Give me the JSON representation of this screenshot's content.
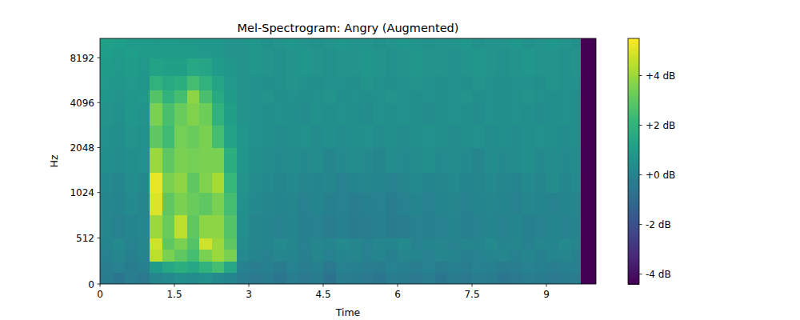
{
  "chart_data": {
    "type": "heatmap",
    "title": "Mel-Spectrogram: Angry (Augmented)",
    "x_label": "Time",
    "y_label": "Hz",
    "log": "y",
    "xlim": [
      0,
      10
    ],
    "ylim": [
      0,
      11025
    ],
    "xticks": [
      0,
      1.5,
      3,
      4.5,
      6,
      7.5,
      9
    ],
    "yticks": [
      0,
      512,
      1024,
      2048,
      4096,
      8192
    ],
    "x_edges": [
      0,
      0.25,
      0.5,
      0.75,
      1,
      1.25,
      1.5,
      1.75,
      2,
      2.25,
      2.5,
      2.75,
      3,
      3.25,
      3.5,
      3.75,
      4,
      4.25,
      4.5,
      4.75,
      5,
      5.25,
      5.5,
      5.75,
      6,
      6.25,
      6.5,
      6.75,
      7,
      7.25,
      7.5,
      7.75,
      8,
      8.25,
      8.5,
      8.75,
      9,
      9.25,
      9.5,
      9.7,
      10
    ],
    "y_edges": [
      0,
      128,
      256,
      384,
      512,
      768,
      1024,
      1400,
      2048,
      2900,
      4096,
      5000,
      6200,
      8192,
      9500,
      11025
    ],
    "cells": [
      [
        -0.3,
        -0.5,
        -0.2,
        -0.4,
        0.2,
        0.3,
        0.5,
        0.4,
        0.6,
        0.3,
        0.1,
        -0.2,
        -0.4,
        -0.3,
        -0.5,
        -0.2,
        -0.4,
        -0.3,
        -0.6,
        -0.2,
        -0.3,
        -0.4,
        -0.5,
        -0.2,
        -0.3,
        -0.4,
        -0.2,
        -0.5,
        -0.3,
        -0.4,
        -0.2,
        -0.3,
        -0.5,
        -0.4,
        -0.2,
        -0.3,
        -0.4,
        -0.3,
        -0.2,
        -4.4
      ],
      [
        -0.2,
        0.0,
        -0.3,
        -0.1,
        1.0,
        1.5,
        1.8,
        1.5,
        2.0,
        2.5,
        1.5,
        0.0,
        -0.2,
        -0.1,
        -0.3,
        0.0,
        -0.2,
        -0.1,
        -0.4,
        0.0,
        -0.1,
        -0.2,
        -0.3,
        0.0,
        -0.1,
        -0.2,
        0.0,
        -0.3,
        -0.1,
        -0.2,
        0.0,
        -0.1,
        -0.3,
        -0.2,
        0.0,
        -0.1,
        -0.2,
        -0.1,
        0.0,
        -4.4
      ],
      [
        0.0,
        0.2,
        -0.1,
        0.1,
        4.5,
        3.5,
        3.0,
        2.5,
        3.5,
        4.0,
        3.5,
        0.3,
        0.1,
        0.0,
        0.2,
        0.1,
        -0.1,
        0.2,
        0.0,
        0.1,
        0.2,
        0.0,
        0.1,
        -0.1,
        0.2,
        0.1,
        0.0,
        0.2,
        0.1,
        -0.1,
        0.0,
        0.1,
        0.2,
        0.0,
        0.1,
        -0.1,
        0.1,
        0.2,
        0.0,
        -4.4
      ],
      [
        0.1,
        0.3,
        0.0,
        0.2,
        4.8,
        3.0,
        3.5,
        2.8,
        4.8,
        4.0,
        3.0,
        0.4,
        0.2,
        0.1,
        0.3,
        0.2,
        0.0,
        0.2,
        0.1,
        0.3,
        0.2,
        0.0,
        0.2,
        0.1,
        0.3,
        0.0,
        0.1,
        0.2,
        0.0,
        0.2,
        0.1,
        0.3,
        0.1,
        0.2,
        0.0,
        0.2,
        0.1,
        0.3,
        0.2,
        -4.4
      ],
      [
        0.2,
        0.0,
        0.1,
        0.2,
        4.0,
        3.2,
        4.5,
        3.0,
        3.8,
        3.8,
        2.8,
        0.5,
        0.2,
        0.1,
        0.0,
        0.1,
        -0.1,
        0.0,
        -0.2,
        -0.1,
        -0.3,
        -0.2,
        -0.1,
        -0.3,
        -0.2,
        0.0,
        -0.1,
        0.0,
        0.1,
        -0.1,
        0.0,
        0.1,
        0.0,
        0.1,
        -0.1,
        0.0,
        0.1,
        0.0,
        0.1,
        -4.4
      ],
      [
        0.2,
        0.1,
        0.3,
        0.2,
        5.0,
        3.0,
        3.5,
        3.2,
        3.0,
        3.5,
        2.5,
        0.6,
        0.3,
        0.2,
        0.1,
        0.2,
        0.0,
        0.1,
        -0.1,
        0.0,
        -0.2,
        -0.1,
        0.0,
        -0.2,
        0.0,
        0.1,
        0.0,
        0.1,
        0.2,
        0.0,
        0.1,
        0.2,
        0.1,
        0.0,
        0.2,
        0.1,
        0.0,
        0.1,
        0.2,
        -4.4
      ],
      [
        0.3,
        0.2,
        0.4,
        0.3,
        5.2,
        3.5,
        3.8,
        3.0,
        3.6,
        4.2,
        2.2,
        0.7,
        0.4,
        0.3,
        0.2,
        0.3,
        0.2,
        0.1,
        0.2,
        0.0,
        0.1,
        0.2,
        0.1,
        0.0,
        0.2,
        0.3,
        0.1,
        0.2,
        0.3,
        0.1,
        0.2,
        0.3,
        0.2,
        0.1,
        0.3,
        0.2,
        0.4,
        0.2,
        0.3,
        -4.4
      ],
      [
        0.5,
        0.4,
        0.5,
        0.6,
        4.0,
        3.0,
        3.5,
        3.4,
        3.5,
        3.5,
        1.8,
        0.8,
        0.5,
        0.4,
        0.3,
        0.4,
        0.3,
        0.4,
        0.2,
        0.3,
        0.4,
        0.3,
        0.2,
        0.4,
        0.3,
        0.4,
        0.5,
        0.3,
        0.4,
        0.3,
        0.2,
        0.4,
        0.3,
        0.4,
        0.5,
        0.3,
        0.4,
        0.3,
        0.4,
        -4.4
      ],
      [
        0.6,
        0.5,
        0.7,
        0.6,
        3.0,
        2.4,
        3.4,
        3.2,
        3.5,
        2.5,
        1.3,
        0.8,
        0.6,
        0.5,
        0.4,
        0.5,
        0.6,
        0.4,
        0.5,
        0.4,
        0.5,
        0.6,
        0.4,
        0.5,
        0.4,
        0.5,
        0.6,
        0.5,
        0.4,
        0.5,
        0.6,
        0.4,
        0.5,
        0.4,
        0.5,
        0.6,
        0.5,
        0.4,
        0.5,
        -4.4
      ],
      [
        0.7,
        0.6,
        0.8,
        0.7,
        3.5,
        2.6,
        3.2,
        3.6,
        3.3,
        2.0,
        1.2,
        0.7,
        0.6,
        0.5,
        0.6,
        0.5,
        0.4,
        0.6,
        0.5,
        0.6,
        0.5,
        0.4,
        0.6,
        0.5,
        0.6,
        0.5,
        0.4,
        0.5,
        0.6,
        0.5,
        0.4,
        0.6,
        0.5,
        0.6,
        0.5,
        0.4,
        0.5,
        0.6,
        0.5,
        -4.4
      ],
      [
        0.8,
        0.7,
        0.8,
        0.9,
        2.8,
        2.0,
        2.5,
        3.8,
        2.6,
        1.6,
        1.0,
        0.7,
        0.6,
        0.7,
        0.5,
        0.6,
        0.5,
        0.6,
        0.7,
        0.5,
        0.6,
        0.5,
        0.6,
        0.7,
        0.6,
        0.5,
        0.6,
        0.5,
        0.6,
        0.7,
        0.5,
        0.6,
        0.5,
        0.6,
        0.7,
        0.6,
        0.5,
        0.6,
        0.5,
        -4.4
      ],
      [
        0.9,
        0.8,
        0.9,
        0.8,
        2.0,
        1.6,
        1.8,
        2.5,
        2.0,
        1.4,
        0.9,
        0.7,
        0.6,
        0.5,
        0.6,
        0.7,
        0.6,
        0.5,
        0.6,
        0.6,
        0.5,
        0.7,
        0.6,
        0.5,
        0.6,
        0.7,
        0.6,
        0.5,
        0.6,
        0.5,
        0.7,
        0.6,
        0.5,
        0.6,
        0.6,
        0.5,
        0.7,
        0.6,
        0.6,
        -4.4
      ],
      [
        1.0,
        0.9,
        1.0,
        0.9,
        1.3,
        1.2,
        1.2,
        1.5,
        1.4,
        1.0,
        0.8,
        0.7,
        0.8,
        0.7,
        0.6,
        0.7,
        0.8,
        0.7,
        0.6,
        0.7,
        0.7,
        0.8,
        0.7,
        0.6,
        0.7,
        0.8,
        0.7,
        0.7,
        0.6,
        0.7,
        0.8,
        0.7,
        0.6,
        0.7,
        0.8,
        0.7,
        0.7,
        0.6,
        0.7,
        -4.4
      ],
      [
        1.1,
        1.0,
        1.1,
        1.0,
        1.0,
        1.0,
        1.0,
        1.0,
        0.9,
        0.8,
        0.7,
        0.7,
        0.8,
        0.7,
        0.6,
        0.7,
        0.8,
        0.7,
        0.6,
        0.7,
        0.7,
        0.8,
        0.7,
        0.6,
        0.7,
        0.8,
        0.7,
        0.7,
        0.6,
        0.7,
        0.8,
        0.7,
        0.6,
        0.7,
        0.8,
        0.7,
        0.7,
        0.6,
        0.7,
        -4.4
      ],
      [
        1.2,
        1.1,
        1.0,
        1.0,
        0.9,
        1.0,
        0.9,
        0.9,
        0.8,
        0.8,
        0.7,
        0.7,
        0.8,
        0.6,
        0.7,
        0.8,
        0.7,
        0.6,
        0.7,
        0.8,
        0.7,
        0.7,
        0.6,
        0.7,
        0.8,
        0.7,
        0.6,
        0.7,
        0.7,
        0.8,
        0.6,
        0.7,
        0.7,
        0.8,
        0.6,
        0.7,
        0.8,
        0.7,
        0.6,
        -4.4
      ]
    ],
    "colorbar": {
      "range": [
        -4.4,
        5.5
      ],
      "ticks": [
        {
          "value": -4,
          "label": "-4 dB"
        },
        {
          "value": -2,
          "label": "-2 dB"
        },
        {
          "value": 0,
          "label": "+0 dB"
        },
        {
          "value": 2,
          "label": "+2 dB"
        },
        {
          "value": 4,
          "label": "+4 dB"
        }
      ]
    }
  }
}
